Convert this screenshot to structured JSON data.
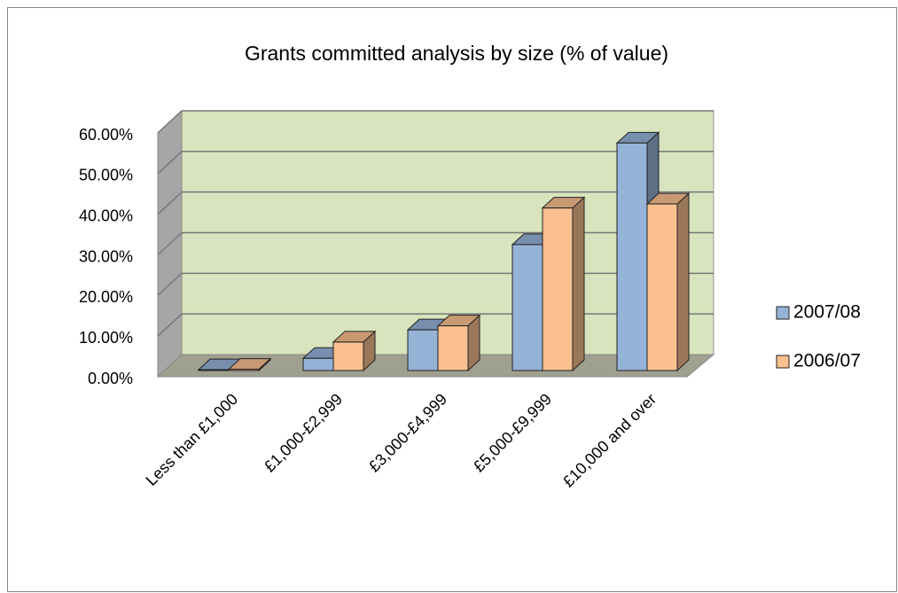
{
  "chart_data": {
    "type": "bar3d",
    "title": "Grants committed analysis by size (% of value)",
    "categories": [
      "Less than £1,000",
      "£1,000-£2,999",
      "£3,000-£4,999",
      "£5,000-£9,999",
      "£10,000 and over"
    ],
    "series": [
      {
        "name": "2007/08",
        "color": "#95b3d7",
        "values": [
          0.2,
          3.0,
          10.0,
          31.0,
          56.0
        ]
      },
      {
        "name": "2006/07",
        "color": "#fac090",
        "values": [
          0.3,
          7.0,
          11.0,
          40.0,
          41.0
        ]
      }
    ],
    "ylim": [
      0,
      60
    ],
    "yticks": [
      {
        "value": 0,
        "label": "0.00%"
      },
      {
        "value": 10,
        "label": "10.00%"
      },
      {
        "value": 20,
        "label": "20.00%"
      },
      {
        "value": 30,
        "label": "30.00%"
      },
      {
        "value": 40,
        "label": "40.00%"
      },
      {
        "value": 50,
        "label": "50.00%"
      },
      {
        "value": 60,
        "label": "60.00%"
      }
    ],
    "grid": true,
    "legend": "right"
  }
}
